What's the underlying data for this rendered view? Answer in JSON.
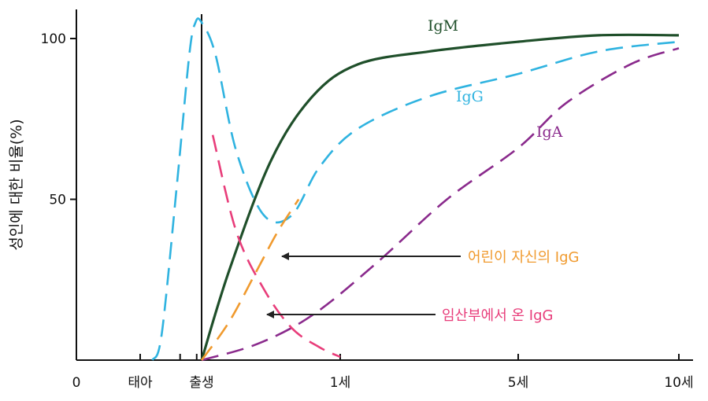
{
  "chart_data": {
    "type": "line",
    "title": "",
    "xlabel": "",
    "ylabel": "성인에 대한 비율(%)",
    "ylim": [
      0,
      108
    ],
    "yticks": [
      100,
      50
    ],
    "xticks": [
      {
        "label": "0",
        "pos": 0
      },
      {
        "label": "태아",
        "pos": 1
      },
      {
        "label": "출생",
        "pos": 2
      },
      {
        "label": "1세",
        "pos": 3
      },
      {
        "label": "5세",
        "pos": 4
      },
      {
        "label": "10세",
        "pos": 5
      }
    ],
    "birth_marker": {
      "label": "출생",
      "pos": 2
    },
    "grid": false,
    "series": [
      {
        "name": "IgM",
        "color": "#1f4f2a",
        "dash": "solid",
        "points": [
          [
            2,
            0
          ],
          [
            2.2,
            28
          ],
          [
            2.5,
            62
          ],
          [
            2.8,
            82
          ],
          [
            3.1,
            92
          ],
          [
            3.5,
            96
          ],
          [
            4,
            99
          ],
          [
            4.5,
            101
          ],
          [
            5,
            101
          ]
        ]
      },
      {
        "name": "IgG",
        "color": "#2fb3e0",
        "dash": "dashed",
        "points": [
          [
            1.2,
            0
          ],
          [
            1.35,
            8
          ],
          [
            1.6,
            55
          ],
          [
            1.8,
            95
          ],
          [
            1.9,
            105
          ],
          [
            2,
            105
          ],
          [
            2.1,
            95
          ],
          [
            2.25,
            65
          ],
          [
            2.45,
            45
          ],
          [
            2.65,
            45
          ],
          [
            2.85,
            60
          ],
          [
            3.1,
            72
          ],
          [
            3.5,
            82
          ],
          [
            4,
            89
          ],
          [
            4.5,
            96
          ],
          [
            5,
            99
          ]
        ]
      },
      {
        "name": "IgA",
        "color": "#8a2a8c",
        "dash": "dashed",
        "points": [
          [
            2,
            0
          ],
          [
            2.4,
            5
          ],
          [
            2.8,
            14
          ],
          [
            3.2,
            30
          ],
          [
            3.6,
            50
          ],
          [
            4,
            66
          ],
          [
            4.3,
            80
          ],
          [
            4.7,
            92
          ],
          [
            5,
            97
          ]
        ]
      },
      {
        "name": "어린이 자신의 IgG",
        "color": "#f09a2e",
        "dash": "dashed",
        "points": [
          [
            2,
            0
          ],
          [
            2.2,
            12
          ],
          [
            2.4,
            28
          ],
          [
            2.55,
            40
          ],
          [
            2.7,
            50
          ]
        ]
      },
      {
        "name": "임산부에서 온  IgG",
        "color": "#e83d7a",
        "dash": "dashed",
        "points": [
          [
            2.08,
            70
          ],
          [
            2.25,
            40
          ],
          [
            2.45,
            22
          ],
          [
            2.65,
            10
          ],
          [
            2.85,
            4
          ],
          [
            3,
            1
          ]
        ]
      }
    ],
    "series_labels": [
      "IgM",
      "IgG",
      "IgA"
    ],
    "annotations": [
      {
        "text": "어린이 자신의 IgG",
        "color": "#f09a2e",
        "points_to": "어린이 자신의 IgG"
      },
      {
        "text": "임산부에서 온  IgG",
        "color": "#e83d7a",
        "points_to": "임산부에서 온  IgG"
      }
    ]
  }
}
